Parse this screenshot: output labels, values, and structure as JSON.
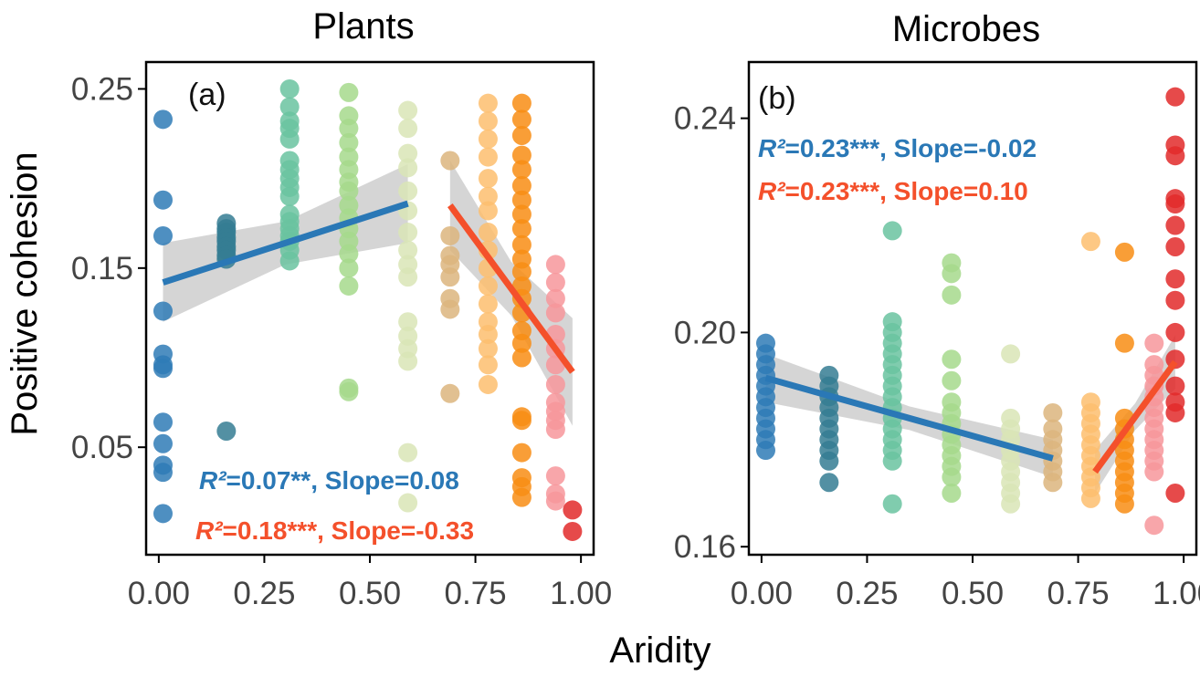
{
  "figure": {
    "ylabel": "Positive cohesion",
    "xlabel": "Aridity"
  },
  "chart_data": [
    {
      "type": "scatter",
      "title": "Plants",
      "panel_label": "(a)",
      "xlim": [
        -0.03,
        1.03
      ],
      "ylim": [
        -0.01,
        0.265
      ],
      "x_ticks": [
        0.0,
        0.25,
        0.5,
        0.75,
        1.0
      ],
      "x_tick_labels": [
        "0.00",
        "0.25",
        "0.50",
        "0.75",
        "1.00"
      ],
      "y_ticks": [
        0.05,
        0.15,
        0.25
      ],
      "y_tick_labels": [
        "0.05",
        "0.15",
        "0.25"
      ],
      "grid": false,
      "groups": [
        {
          "x": 0.01,
          "color": "#2f7bb6",
          "y": [
            0.233,
            0.188,
            0.168,
            0.126,
            0.102,
            0.096,
            0.094,
            0.064,
            0.052,
            0.04,
            0.036,
            0.013
          ]
        },
        {
          "x": 0.16,
          "color": "#357d93",
          "y": [
            0.175,
            0.172,
            0.17,
            0.167,
            0.165,
            0.162,
            0.16,
            0.157,
            0.155,
            0.059
          ]
        },
        {
          "x": 0.31,
          "color": "#6ac3a0",
          "y": [
            0.25,
            0.24,
            0.232,
            0.228,
            0.222,
            0.21,
            0.205,
            0.2,
            0.195,
            0.19,
            0.18,
            0.176,
            0.172,
            0.168,
            0.165,
            0.16,
            0.154
          ]
        },
        {
          "x": 0.45,
          "color": "#a6d98c",
          "y": [
            0.248,
            0.235,
            0.228,
            0.22,
            0.212,
            0.205,
            0.198,
            0.193,
            0.185,
            0.178,
            0.172,
            0.165,
            0.158,
            0.15,
            0.14,
            0.083,
            0.081
          ]
        },
        {
          "x": 0.59,
          "color": "#d9e5b6",
          "y": [
            0.238,
            0.228,
            0.214,
            0.206,
            0.193,
            0.182,
            0.17,
            0.16,
            0.152,
            0.145,
            0.12,
            0.112,
            0.105,
            0.098,
            0.047,
            0.019
          ]
        },
        {
          "x": 0.69,
          "color": "#dcb57e",
          "y": [
            0.21,
            0.168,
            0.157,
            0.152,
            0.145,
            0.133,
            0.127,
            0.08
          ]
        },
        {
          "x": 0.78,
          "color": "#fdbe6f",
          "y": [
            0.242,
            0.232,
            0.222,
            0.212,
            0.2,
            0.19,
            0.182,
            0.17,
            0.16,
            0.15,
            0.14,
            0.13,
            0.12,
            0.113,
            0.105,
            0.096,
            0.085
          ]
        },
        {
          "x": 0.86,
          "color": "#f88d14",
          "y": [
            0.242,
            0.233,
            0.224,
            0.213,
            0.205,
            0.196,
            0.188,
            0.18,
            0.172,
            0.163,
            0.155,
            0.148,
            0.14,
            0.133,
            0.125,
            0.115,
            0.108,
            0.1,
            0.067,
            0.065,
            0.047,
            0.033,
            0.028,
            0.022
          ]
        },
        {
          "x": 0.94,
          "color": "#f7979b",
          "y": [
            0.152,
            0.142,
            0.133,
            0.125,
            0.113,
            0.105,
            0.096,
            0.085,
            0.075,
            0.07,
            0.065,
            0.06,
            0.034,
            0.024,
            0.02
          ]
        },
        {
          "x": 0.98,
          "color": "#e22a2a",
          "y": [
            0.015,
            0.003
          ]
        }
      ],
      "fits": [
        {
          "color": "#2a78b6",
          "x": [
            0.01,
            0.59
          ],
          "y": [
            0.142,
            0.186
          ],
          "ci": [
            0.022,
            0.012,
            0.022
          ]
        },
        {
          "color": "#f4502b",
          "x": [
            0.69,
            0.98
          ],
          "y": [
            0.185,
            0.092
          ],
          "ci": [
            0.025,
            0.015,
            0.03
          ]
        }
      ],
      "annotations": [
        {
          "r2": "R²",
          "rest": "=0.07**, Slope=0.08",
          "color": "#2a78b6"
        },
        {
          "r2": "R²",
          "rest": "=0.18***, Slope=-0.33",
          "color": "#f4502b"
        }
      ]
    },
    {
      "type": "scatter",
      "title": "Microbes",
      "panel_label": "(b)",
      "xlim": [
        -0.03,
        1.03
      ],
      "ylim": [
        0.1585,
        0.2505
      ],
      "x_ticks": [
        0.0,
        0.25,
        0.5,
        0.75,
        1.0
      ],
      "x_tick_labels": [
        "0.00",
        "0.25",
        "0.50",
        "0.75",
        "1.00"
      ],
      "y_ticks": [
        0.16,
        0.2,
        0.24
      ],
      "y_tick_labels": [
        "0.16",
        "0.20",
        "0.24"
      ],
      "grid": false,
      "groups": [
        {
          "x": 0.01,
          "color": "#2f7bb6",
          "y": [
            0.198,
            0.196,
            0.194,
            0.192,
            0.19,
            0.188,
            0.186,
            0.184,
            0.182,
            0.18,
            0.178
          ]
        },
        {
          "x": 0.16,
          "color": "#357d93",
          "y": [
            0.192,
            0.19,
            0.188,
            0.186,
            0.184,
            0.182,
            0.18,
            0.178,
            0.176,
            0.172
          ]
        },
        {
          "x": 0.31,
          "color": "#6ac3a0",
          "y": [
            0.219,
            0.202,
            0.2,
            0.198,
            0.196,
            0.194,
            0.192,
            0.19,
            0.188,
            0.186,
            0.184,
            0.182,
            0.18,
            0.178,
            0.176,
            0.168
          ]
        },
        {
          "x": 0.45,
          "color": "#a6d98c",
          "y": [
            0.213,
            0.211,
            0.207,
            0.195,
            0.191,
            0.187,
            0.185,
            0.183,
            0.181,
            0.179,
            0.177,
            0.175,
            0.173,
            0.17
          ]
        },
        {
          "x": 0.59,
          "color": "#d9e5b6",
          "y": [
            0.196,
            0.184,
            0.182,
            0.18,
            0.178,
            0.176,
            0.174,
            0.172,
            0.17,
            0.168
          ]
        },
        {
          "x": 0.69,
          "color": "#dcb57e",
          "y": [
            0.185,
            0.182,
            0.18,
            0.178,
            0.176,
            0.174,
            0.172
          ]
        },
        {
          "x": 0.78,
          "color": "#fdbe6f",
          "y": [
            0.217,
            0.187,
            0.185,
            0.183,
            0.181,
            0.179,
            0.177,
            0.175,
            0.173,
            0.171,
            0.169
          ]
        },
        {
          "x": 0.86,
          "color": "#f88d14",
          "y": [
            0.215,
            0.198,
            0.184,
            0.182,
            0.18,
            0.178,
            0.176,
            0.174,
            0.172,
            0.17,
            0.168
          ]
        },
        {
          "x": 0.93,
          "color": "#f7979b",
          "y": [
            0.198,
            0.194,
            0.192,
            0.19,
            0.188,
            0.186,
            0.184,
            0.182,
            0.18,
            0.178,
            0.176,
            0.174,
            0.164
          ]
        },
        {
          "x": 0.98,
          "color": "#e22a2a",
          "y": [
            0.244,
            0.235,
            0.233,
            0.225,
            0.224,
            0.22,
            0.216,
            0.21,
            0.206,
            0.2,
            0.195,
            0.19,
            0.187,
            0.185,
            0.17
          ]
        }
      ],
      "fits": [
        {
          "color": "#2a78b6",
          "x": [
            0.01,
            0.69
          ],
          "y": [
            0.1915,
            0.1765
          ],
          "ci": [
            0.0045,
            0.0022,
            0.0035
          ]
        },
        {
          "color": "#f4502b",
          "x": [
            0.79,
            0.98
          ],
          "y": [
            0.174,
            0.1945
          ],
          "ci": [
            0.004,
            0.0025,
            0.005
          ]
        }
      ],
      "annotations": [
        {
          "r2": "R²",
          "rest": "=0.23***, Slope=-0.02",
          "color": "#2a78b6"
        },
        {
          "r2": "R²",
          "rest": "=0.23***, Slope=0.10",
          "color": "#f4502b"
        }
      ]
    }
  ]
}
